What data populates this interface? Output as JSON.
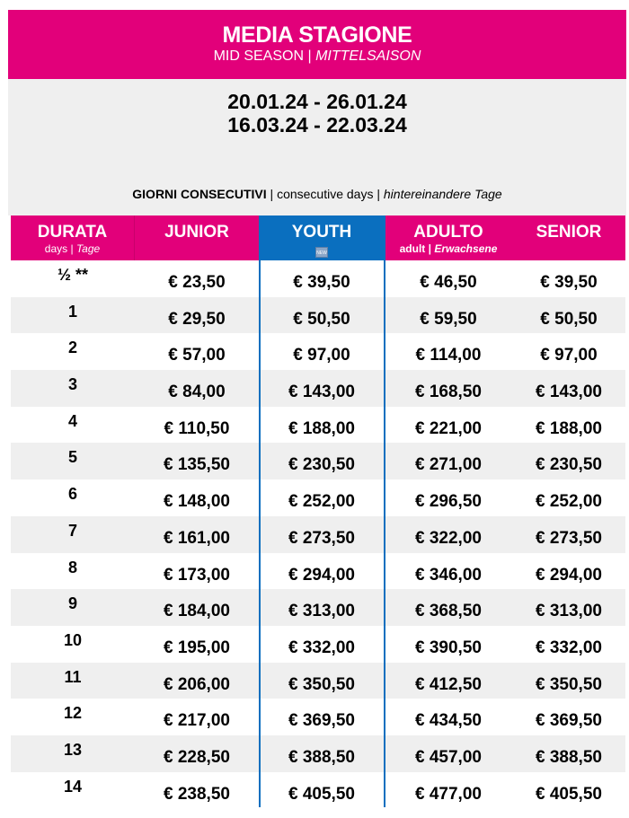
{
  "header": {
    "title": "MEDIA STAGIONE",
    "subtitle_en": "MID SEASON",
    "subtitle_sep": " | ",
    "subtitle_de": "MITTELSAISON"
  },
  "periods": [
    "20.01.24 - 26.01.24",
    "16.03.24 - 22.03.24"
  ],
  "consecutive": {
    "it": "GIORNI CONSECUTIVI",
    "sep": " | ",
    "en": "consecutive days",
    "de": "hintereinandere Tage"
  },
  "columns": {
    "duration": {
      "label": "DURATA",
      "sub_en": "days",
      "sub_de": "Tage"
    },
    "junior": {
      "label": "JUNIOR"
    },
    "youth": {
      "label": "YOUTH",
      "badge": "NEW"
    },
    "adult": {
      "label": "ADULTO",
      "sub_en": "adult",
      "sub_de": "Erwachsene"
    },
    "senior": {
      "label": "SENIOR"
    }
  },
  "colors": {
    "pink": "#e2007a",
    "blue": "#0a6fbf",
    "gray": "#efefef"
  },
  "rows": [
    [
      "½ **",
      "€ 23,50",
      "€ 39,50",
      "€ 46,50",
      "€ 39,50"
    ],
    [
      "1",
      "€ 29,50",
      "€ 50,50",
      "€ 59,50",
      "€ 50,50"
    ],
    [
      "2",
      "€ 57,00",
      "€ 97,00",
      "€ 114,00",
      "€ 97,00"
    ],
    [
      "3",
      "€ 84,00",
      "€ 143,00",
      "€ 168,50",
      "€ 143,00"
    ],
    [
      "4",
      "€ 110,50",
      "€ 188,00",
      "€ 221,00",
      "€ 188,00"
    ],
    [
      "5",
      "€ 135,50",
      "€ 230,50",
      "€ 271,00",
      "€ 230,50"
    ],
    [
      "6",
      "€ 148,00",
      "€ 252,00",
      "€ 296,50",
      "€ 252,00"
    ],
    [
      "7",
      "€ 161,00",
      "€ 273,50",
      "€ 322,00",
      "€ 273,50"
    ],
    [
      "8",
      "€ 173,00",
      "€ 294,00",
      "€ 346,00",
      "€ 294,00"
    ],
    [
      "9",
      "€ 184,00",
      "€ 313,00",
      "€ 368,50",
      "€ 313,00"
    ],
    [
      "10",
      "€ 195,00",
      "€ 332,00",
      "€ 390,50",
      "€ 332,00"
    ],
    [
      "11",
      "€ 206,00",
      "€ 350,50",
      "€ 412,50",
      "€ 350,50"
    ],
    [
      "12",
      "€ 217,00",
      "€ 369,50",
      "€ 434,50",
      "€ 369,50"
    ],
    [
      "13",
      "€ 228,50",
      "€ 388,50",
      "€ 457,00",
      "€ 388,50"
    ],
    [
      "14",
      "€ 238,50",
      "€ 405,50",
      "€ 477,00",
      "€ 405,50"
    ]
  ]
}
